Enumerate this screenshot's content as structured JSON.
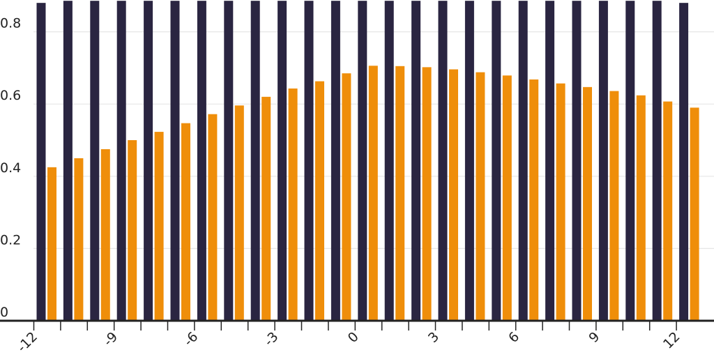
{
  "chart_data": {
    "type": "bar",
    "title": "",
    "xlabel": "",
    "ylabel": "",
    "x": [
      -12,
      -11,
      -10,
      -9,
      -8,
      -7,
      -6,
      -5,
      -4,
      -3,
      -2,
      -1,
      0,
      1,
      2,
      3,
      4,
      5,
      6,
      7,
      8,
      9,
      10,
      11,
      12
    ],
    "xticks": [
      "-12",
      "-9",
      "-6",
      "-3",
      "0",
      "3",
      "6",
      "9",
      "12"
    ],
    "yticks": [
      "0",
      "0.2",
      "0.4",
      "0.6",
      "0.8"
    ],
    "ylim": [
      0,
      0.88
    ],
    "grid": true,
    "legend": "none",
    "series": [
      {
        "color": "#2a2541",
        "values": [
          0.88,
          0.92,
          0.92,
          0.92,
          0.92,
          0.92,
          0.92,
          0.92,
          0.92,
          0.92,
          0.92,
          0.92,
          0.92,
          0.92,
          0.92,
          0.92,
          0.92,
          0.92,
          0.92,
          0.92,
          0.92,
          0.92,
          0.92,
          0.92,
          0.88
        ]
      },
      {
        "color": "#ef8e0a",
        "values": [
          0.425,
          0.45,
          0.475,
          0.5,
          0.523,
          0.547,
          0.572,
          0.596,
          0.62,
          0.643,
          0.663,
          0.685,
          0.706,
          0.705,
          0.702,
          0.696,
          0.688,
          0.679,
          0.668,
          0.657,
          0.647,
          0.636,
          0.624,
          0.607,
          0.59
        ]
      }
    ]
  }
}
